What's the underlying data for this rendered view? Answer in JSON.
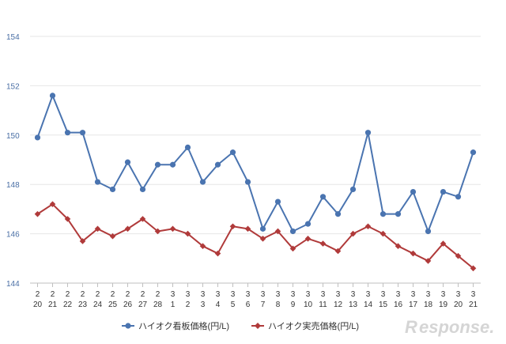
{
  "chart_data": {
    "type": "line",
    "title": "",
    "xlabel": "",
    "ylabel": "",
    "ylim": [
      144,
      154
    ],
    "yticks": [
      144,
      146,
      148,
      150,
      152,
      154
    ],
    "grid": true,
    "legend": "bottom",
    "categories": [
      {
        "m": "2",
        "d": "20"
      },
      {
        "m": "2",
        "d": "21"
      },
      {
        "m": "2",
        "d": "22"
      },
      {
        "m": "2",
        "d": "23"
      },
      {
        "m": "2",
        "d": "24"
      },
      {
        "m": "2",
        "d": "25"
      },
      {
        "m": "2",
        "d": "26"
      },
      {
        "m": "2",
        "d": "27"
      },
      {
        "m": "2",
        "d": "28"
      },
      {
        "m": "3",
        "d": "1"
      },
      {
        "m": "3",
        "d": "2"
      },
      {
        "m": "3",
        "d": "3"
      },
      {
        "m": "3",
        "d": "4"
      },
      {
        "m": "3",
        "d": "5"
      },
      {
        "m": "3",
        "d": "6"
      },
      {
        "m": "3",
        "d": "7"
      },
      {
        "m": "3",
        "d": "8"
      },
      {
        "m": "3",
        "d": "9"
      },
      {
        "m": "3",
        "d": "10"
      },
      {
        "m": "3",
        "d": "11"
      },
      {
        "m": "3",
        "d": "12"
      },
      {
        "m": "3",
        "d": "13"
      },
      {
        "m": "3",
        "d": "14"
      },
      {
        "m": "3",
        "d": "15"
      },
      {
        "m": "3",
        "d": "16"
      },
      {
        "m": "3",
        "d": "17"
      },
      {
        "m": "3",
        "d": "18"
      },
      {
        "m": "3",
        "d": "19"
      },
      {
        "m": "3",
        "d": "20"
      },
      {
        "m": "3",
        "d": "21"
      }
    ],
    "series": [
      {
        "name": "ハイオク看板価格(円/L)",
        "color": "#4a74b0",
        "marker": "circle",
        "values": [
          149.9,
          151.6,
          150.1,
          150.1,
          148.1,
          147.8,
          148.9,
          147.8,
          148.8,
          148.8,
          149.5,
          148.1,
          148.8,
          149.3,
          148.1,
          146.2,
          147.3,
          146.1,
          146.4,
          147.5,
          146.8,
          147.8,
          150.1,
          146.8,
          146.8,
          147.7,
          146.1,
          147.7,
          147.5,
          149.3
        ]
      },
      {
        "name": "ハイオク実売価格(円/L)",
        "color": "#b03a3a",
        "marker": "diamond",
        "values": [
          146.8,
          147.2,
          146.6,
          145.7,
          146.2,
          145.9,
          146.2,
          146.6,
          146.1,
          146.2,
          146.0,
          145.5,
          145.2,
          146.3,
          146.2,
          145.8,
          146.1,
          145.4,
          145.8,
          145.6,
          145.3,
          146.0,
          146.3,
          146.0,
          145.5,
          145.2,
          144.9,
          145.6,
          145.1,
          144.6
        ]
      }
    ]
  },
  "watermark": {
    "text": "esponse.",
    "logo_letter": "R"
  }
}
